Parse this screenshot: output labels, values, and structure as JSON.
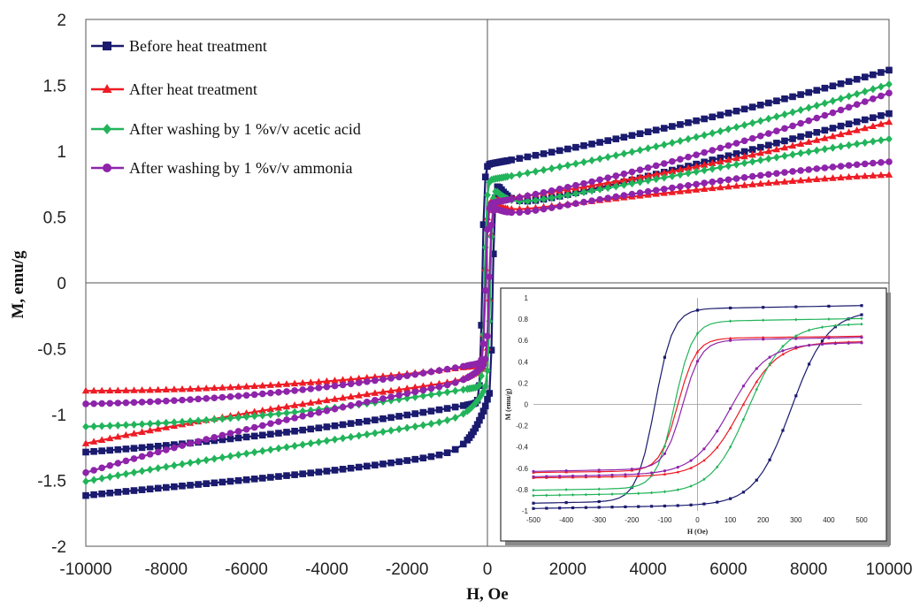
{
  "chart_data": {
    "type": "line",
    "xlabel": "H, Oe",
    "ylabel": "M, emu/g",
    "xlim": [
      -10000,
      10000
    ],
    "ylim": [
      -2,
      2
    ],
    "xticks": [
      -10000,
      -8000,
      -6000,
      -4000,
      -2000,
      0,
      2000,
      4000,
      6000,
      8000,
      10000
    ],
    "yticks": [
      2,
      1.5,
      1,
      0.5,
      0,
      -0.5,
      -1,
      -1.5,
      -2
    ],
    "legend_position": "top-left",
    "series": [
      {
        "name": "Before heat treatment",
        "color": "#1a1a6e",
        "marker": "square",
        "ms": 0.9,
        "hc": 130,
        "k": 0.055,
        "beta": 0.3,
        "lower_offset": 0.35
      },
      {
        "name": "After heat treatment",
        "color": "#ee1c25",
        "marker": "triangle",
        "ms": 0.62,
        "hc": 60,
        "k": 0.04,
        "beta": 0.5,
        "lower_offset": 0.1
      },
      {
        "name": "After washing by 1 %v/v acetic acid",
        "color": "#22b45a",
        "marker": "diamond",
        "ms": 0.78,
        "hc": 70,
        "k": 0.052,
        "beta": 0.4,
        "lower_offset": 0.22
      },
      {
        "name": "After washing by 1 %v/v ammonia",
        "color": "#8e24aa",
        "marker": "circle",
        "ms": 0.6,
        "hc": 45,
        "k": 0.058,
        "beta": 0.45,
        "lower_offset": 0.12
      }
    ]
  },
  "inset": {
    "xlabel": "H (Oe)",
    "ylabel": "M (emu/g)",
    "xlim": [
      -500,
      500
    ],
    "ylim": [
      -1,
      1
    ],
    "xticks": [
      -500,
      -400,
      -300,
      -200,
      -100,
      0,
      100,
      200,
      300,
      400,
      500
    ],
    "yticks": [
      1,
      0.8,
      0.6,
      0.4,
      0.2,
      0,
      -0.2,
      -0.4,
      -0.6,
      -0.8,
      -1
    ]
  }
}
